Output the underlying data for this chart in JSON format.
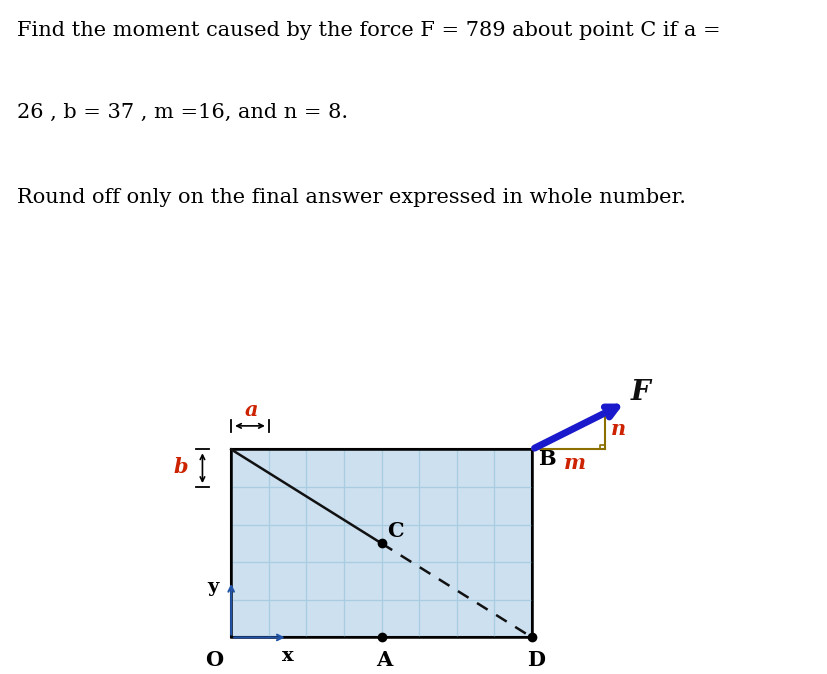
{
  "text_line1": "Find the moment caused by the force F = 789 about point C if a =",
  "text_line2": "26 , b = 37 , m =16, and n = 8.",
  "text_line3": "Round off only on the final answer expressed in whole number.",
  "grid_color": "#a8cce0",
  "grid_bg": "#cce0f0",
  "grid_rows": 5,
  "grid_cols": 8,
  "label_a": "a",
  "label_b": "b",
  "label_m": "m",
  "label_n": "n",
  "label_F": "F",
  "label_B": "B",
  "label_C": "C",
  "label_A": "A",
  "label_D": "D",
  "label_O": "O",
  "label_x": "x",
  "label_y": "y",
  "label_color_red": "#cc2200",
  "label_color_black": "#111111",
  "arrow_color": "#1a1acc",
  "diagonal_color": "#111111",
  "triangle_color": "#8b7000",
  "text_fontsize": 15,
  "diagram_label_fontsize": 15
}
